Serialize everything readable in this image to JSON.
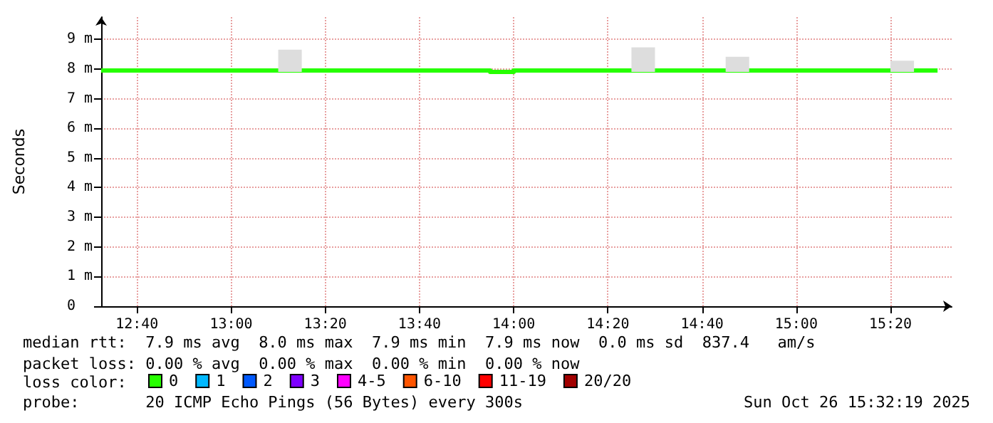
{
  "chart_data": {
    "type": "step",
    "ylabel": "Seconds",
    "legend_title": "loss color:",
    "legend": "bottom",
    "grid": true,
    "xlim": [
      12.54,
      15.55
    ],
    "xticks": [
      {
        "value": 12.6667,
        "label": "12:40"
      },
      {
        "value": 13,
        "label": "13:00"
      },
      {
        "value": 13.3333,
        "label": "13:20"
      },
      {
        "value": 13.6667,
        "label": "13:40"
      },
      {
        "value": 14,
        "label": "14:00"
      },
      {
        "value": 14.3333,
        "label": "14:20"
      },
      {
        "value": 14.6667,
        "label": "14:40"
      },
      {
        "value": 15,
        "label": "15:00"
      },
      {
        "value": 15.3333,
        "label": "15:20"
      }
    ],
    "ylim": [
      0,
      9.75
    ],
    "yticks": [
      0,
      {
        "value": 1,
        "label": "1 m"
      },
      {
        "value": 2,
        "label": "2 m"
      },
      {
        "value": 3,
        "label": "3 m"
      },
      {
        "value": 4,
        "label": "4 m"
      },
      {
        "value": 5,
        "label": "5 m"
      },
      {
        "value": 6,
        "label": "6 m"
      },
      {
        "value": 7,
        "label": "7 m"
      },
      {
        "value": 8,
        "label": "8 m"
      },
      {
        "value": 9,
        "label": "9 m"
      }
    ],
    "series": [
      {
        "type": "bar",
        "color": "#dddddd",
        "x": [
          13.2083,
          14.4583,
          14.7917,
          15.375
        ],
        "base": [
          7.9,
          7.9,
          7.9,
          7.9
        ],
        "values": [
          0.75,
          0.83,
          0.51,
          0.38
        ]
      },
      {
        "name": "0",
        "color": "#26ff00",
        "x": [
          12.54,
          13.9167,
          14,
          15.5
        ],
        "values": [
          7.95,
          7.9,
          7.95,
          7.95
        ]
      },
      {
        "name": "1",
        "color": "#00b8ff"
      },
      {
        "name": "2",
        "color": "#0059ff"
      },
      {
        "name": "3",
        "color": "#7e00ff"
      },
      {
        "name": "4-5",
        "color": "#ff00ff"
      },
      {
        "name": "6-10",
        "color": "#ff5500"
      },
      {
        "name": "11-19",
        "color": "#ff0000"
      },
      {
        "name": "20/20",
        "color": "#a10000"
      }
    ],
    "annotations": [
      "median rtt:  7.9 ms avg  8.0 ms max  7.9 ms min  7.9 ms now  0.0 ms sd  837.4   am/s",
      "packet loss: 0.00 % avg  0.00 % max  0.00 % min  0.00 % now",
      "probe:       20 ICMP Echo Pings (56 Bytes) every 300s",
      "Sun Oct 26 15:32:19 2025"
    ]
  }
}
